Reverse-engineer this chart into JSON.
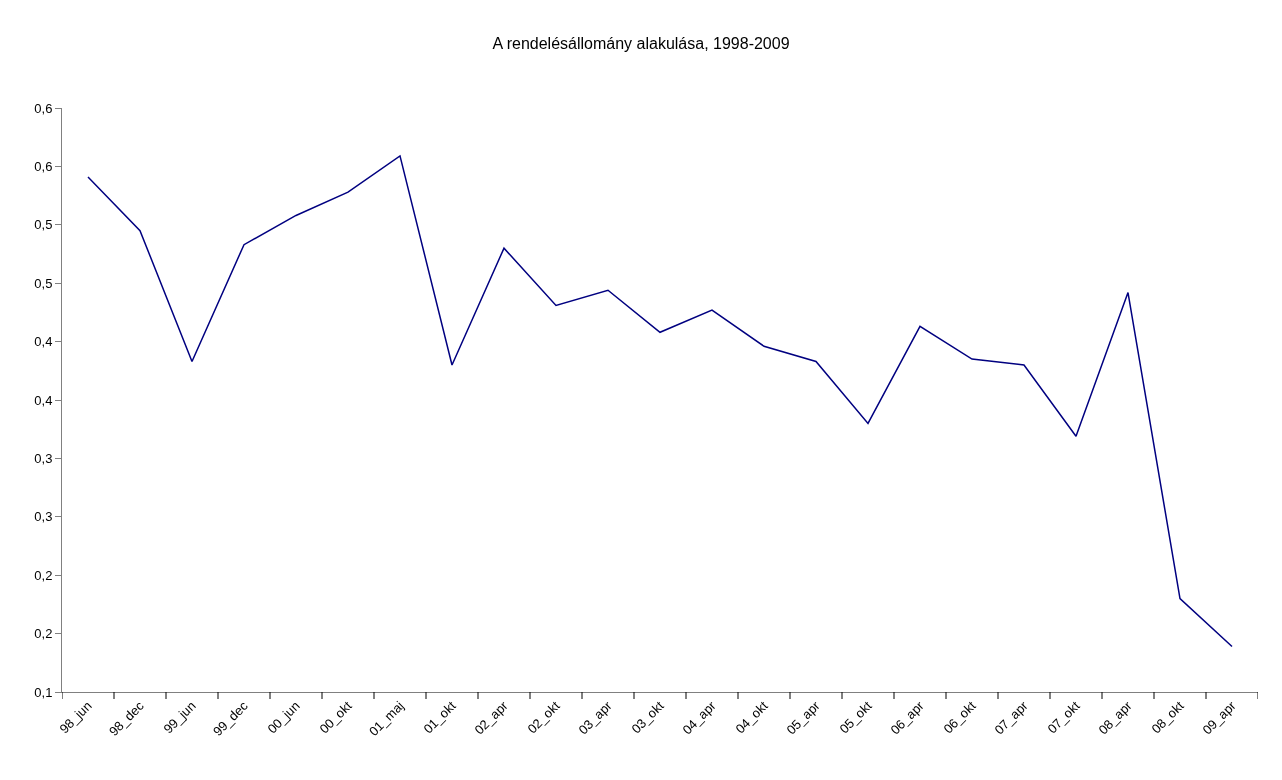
{
  "chart_data": {
    "type": "line",
    "title": "A rendelésállomány alakulása, 1998-2009",
    "categories": [
      "98_jun",
      "98_dec",
      "99_jun",
      "99_dec",
      "00_jun",
      "00_okt",
      "01_maj",
      "01_okt",
      "02_apr",
      "02_okt",
      "03_apr",
      "03_okt",
      "04_apr",
      "04_okt",
      "05_apr",
      "05_okt",
      "06_apr",
      "06_okt",
      "07_apr",
      "07_okt",
      "08_apr",
      "08_okt",
      "09_apr"
    ],
    "series": [
      {
        "color": "#000080",
        "values": [
          0.541,
          0.495,
          0.383,
          0.483,
          0.508,
          0.528,
          0.559,
          0.38,
          0.48,
          0.431,
          0.444,
          0.408,
          0.427,
          0.396,
          0.383,
          0.33,
          0.413,
          0.385,
          0.38,
          0.319,
          0.442,
          0.18,
          0.139
        ]
      }
    ],
    "ylim": [
      0.1,
      0.6
    ],
    "yticks": [
      {
        "value": 0.1,
        "label": "0,1"
      },
      {
        "value": 0.15,
        "label": "0,2"
      },
      {
        "value": 0.2,
        "label": "0,2"
      },
      {
        "value": 0.25,
        "label": "0,3"
      },
      {
        "value": 0.3,
        "label": "0,3"
      },
      {
        "value": 0.35,
        "label": "0,4"
      },
      {
        "value": 0.4,
        "label": "0,4"
      },
      {
        "value": 0.45,
        "label": "0,5"
      },
      {
        "value": 0.5,
        "label": "0,5"
      },
      {
        "value": 0.55,
        "label": "0,6"
      },
      {
        "value": 0.6,
        "label": "0,6"
      }
    ],
    "marker": "none",
    "line_style": "solid"
  }
}
